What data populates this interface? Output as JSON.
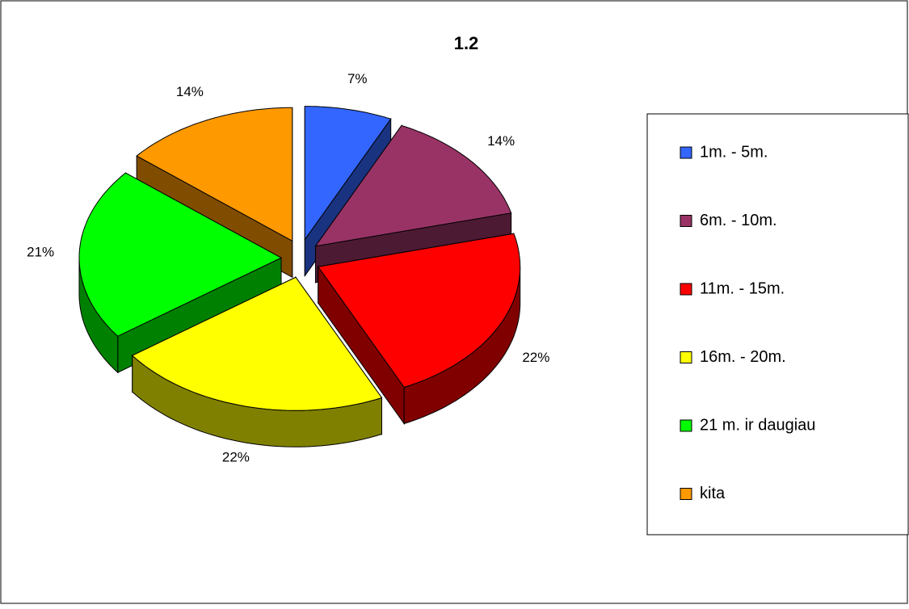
{
  "chart_data": {
    "type": "pie",
    "title": "1.2",
    "categories": [
      "1m. - 5m.",
      "6m. - 10m.",
      "11m. - 15m.",
      "16m. - 20m.",
      "21 m. ir daugiau",
      "kita"
    ],
    "values": [
      7,
      14,
      22,
      22,
      21,
      14
    ],
    "value_labels": [
      "7%",
      "14%",
      "22%",
      "22%",
      "21%",
      "14%"
    ],
    "colors": [
      "#3366ff",
      "#993366",
      "#ff0000",
      "#ffff00",
      "#00ff00",
      "#ff9900"
    ],
    "legend": "right"
  }
}
